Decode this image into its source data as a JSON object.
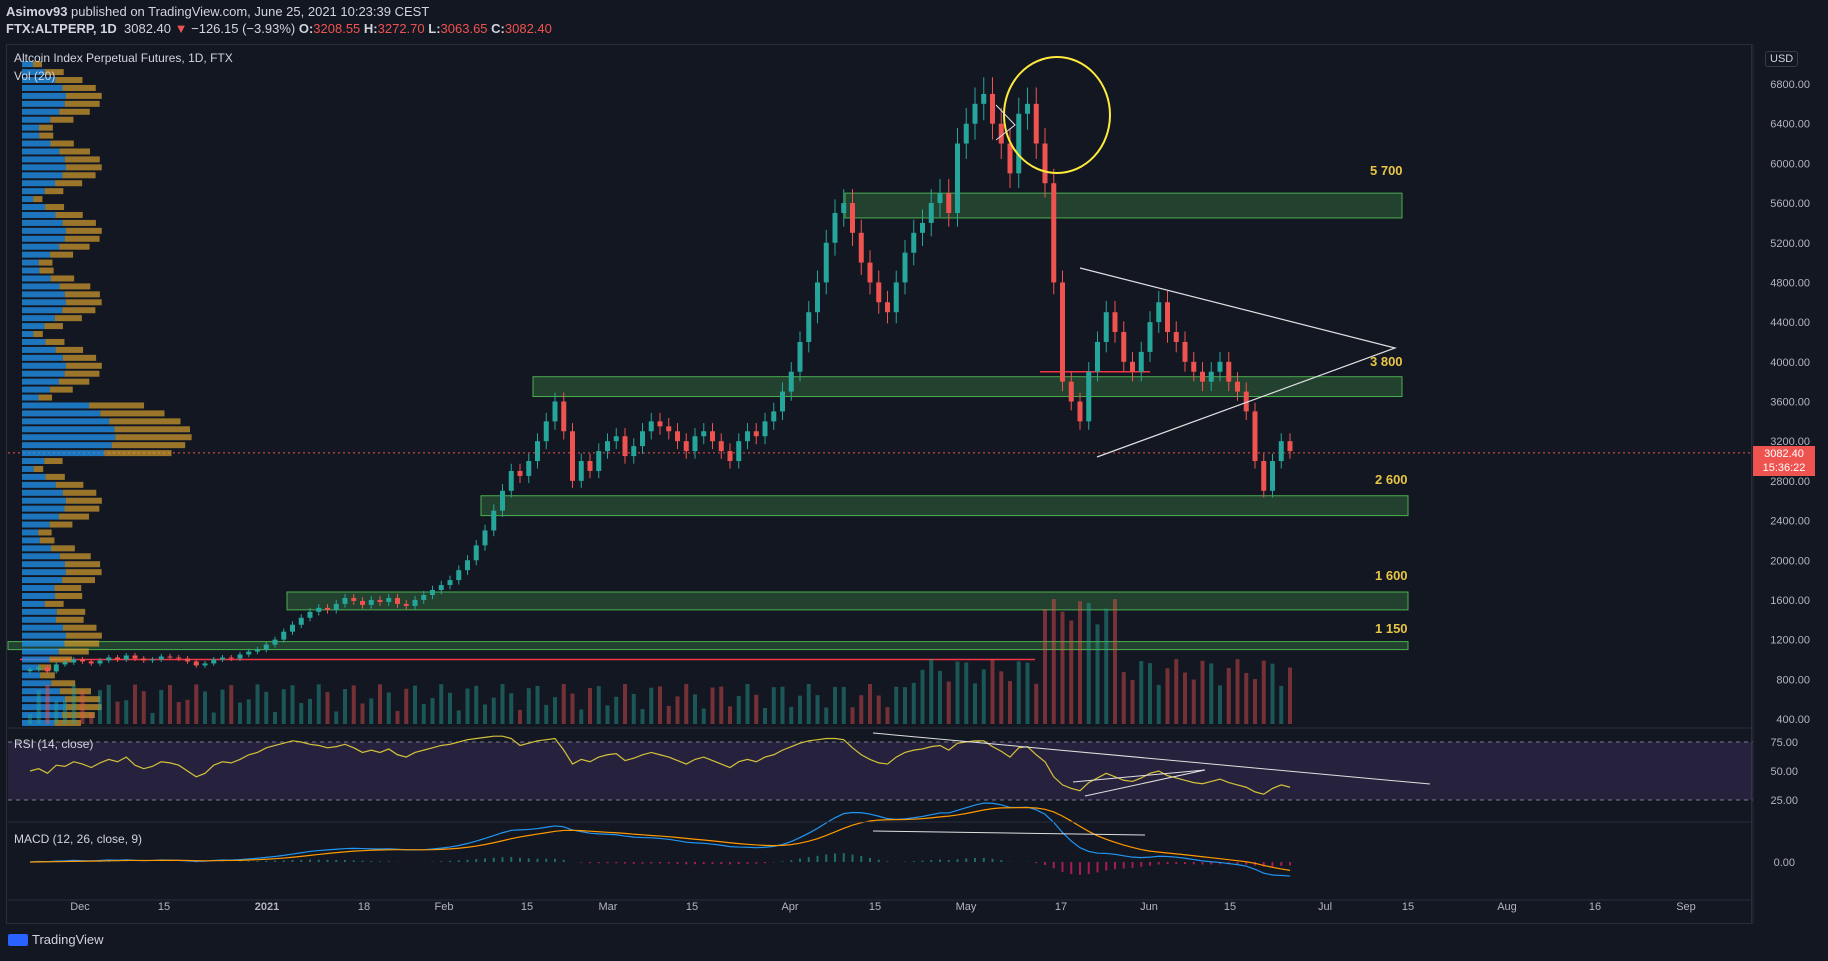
{
  "header": {
    "author": "Asimov93",
    "published": "published on TradingView.com, June 25, 2021 10:23:39 CEST",
    "symbol": "FTX:ALTPERP, 1D",
    "last": "3082.40",
    "change_arrow": "▼",
    "change": "−126.15 (−3.93%)",
    "o_label": "O:",
    "o": "3208.55",
    "h_label": "H:",
    "h": "3272.70",
    "l_label": "L:",
    "l": "3063.65",
    "c_label": "C:",
    "c": "3082.40"
  },
  "chart_title": "Altcoin Index Perpetual Futures, 1D, FTX",
  "vol_label": "Vol (20)",
  "rsi_label": "RSI (14, close)",
  "macd_label": "MACD (12, 26, close, 9)",
  "currency_button": "USD",
  "price_tag": {
    "price": "3082.40",
    "countdown": "15:36:22"
  },
  "levels": [
    "5 700",
    "3 800",
    "2 600",
    "1 600",
    "1 150"
  ],
  "footer": {
    "brand": "TradingView"
  },
  "colors": {
    "up": "#26a69a",
    "down": "#ef5350",
    "zone": "#2e7d32",
    "annotation": "#e8e84a",
    "rsi": "#d4c13a",
    "macd": "#2196f3",
    "signal": "#ff9800",
    "bg": "#131722"
  },
  "chart_data": {
    "type": "candlestick",
    "price_axis_ticks": [
      6800,
      6400,
      6000,
      5600,
      5200,
      4800,
      4400,
      4000,
      3600,
      3200,
      2800,
      2400,
      2000,
      1600,
      1200,
      800,
      400
    ],
    "price_axis_labels": [
      "6800.00",
      "6400.00",
      "6000.00",
      "5600.00",
      "5200.00",
      "4800.00",
      "4400.00",
      "4000.00",
      "3600.00",
      "3200.00",
      "2800.00",
      "2400.00",
      "2000.00",
      "1600.00",
      "1200.00",
      "800.00",
      "400.00"
    ],
    "rsi_axis_labels": [
      "75.00",
      "50.00",
      "25.00"
    ],
    "rsi_ticks": [
      75,
      50,
      25
    ],
    "macd_axis_labels": [
      "0.00"
    ],
    "time_axis_labels": [
      "Dec",
      "15",
      "2021",
      "18",
      "Feb",
      "15",
      "Mar",
      "15",
      "Apr",
      "15",
      "May",
      "17",
      "Jun",
      "15",
      "Jul",
      "15",
      "Aug",
      "16",
      "Sep"
    ],
    "ylim": [
      300,
      7300
    ],
    "support_resistance_zones": [
      {
        "label": "5 700",
        "from": 5450,
        "to": 5700
      },
      {
        "label": "3 800",
        "from": 3650,
        "to": 3850
      },
      {
        "label": "2 600",
        "from": 2450,
        "to": 2650
      },
      {
        "label": "1 600",
        "from": 1500,
        "to": 1680
      },
      {
        "label": "1 150",
        "from": 1100,
        "to": 1180
      }
    ],
    "close_series": [
      900,
      920,
      880,
      950,
      970,
      1000,
      980,
      960,
      990,
      1020,
      1000,
      1040,
      1010,
      990,
      1000,
      1030,
      1020,
      1010,
      980,
      940,
      960,
      1000,
      1020,
      1010,
      1050,
      1080,
      1100,
      1150,
      1200,
      1280,
      1350,
      1420,
      1480,
      1520,
      1500,
      1560,
      1620,
      1590,
      1550,
      1600,
      1580,
      1620,
      1560,
      1540,
      1600,
      1650,
      1700,
      1750,
      1800,
      1900,
      2000,
      2150,
      2300,
      2500,
      2700,
      2900,
      2850,
      3000,
      3200,
      3400,
      3600,
      3300,
      2800,
      3000,
      2900,
      3100,
      3200,
      3250,
      3050,
      3150,
      3300,
      3400,
      3350,
      3300,
      3200,
      3100,
      3250,
      3300,
      3200,
      3100,
      3000,
      3200,
      3300,
      3250,
      3400,
      3500,
      3700,
      3900,
      4200,
      4500,
      4800,
      5200,
      5500,
      5600,
      5300,
      5000,
      4800,
      4600,
      4500,
      4800,
      5100,
      5300,
      5400,
      5600,
      5700,
      5500,
      6200,
      6400,
      6600,
      6700,
      6400,
      6200,
      5900,
      6500,
      6600,
      6200,
      5800,
      4800,
      3800,
      3600,
      3400,
      3900,
      4200,
      4500,
      4300,
      4000,
      3900,
      4100,
      4400,
      4600,
      4300,
      4200,
      4000,
      3900,
      3800,
      3900,
      4000,
      3800,
      3700,
      3500,
      3000,
      2700,
      3000,
      3200,
      3100
    ],
    "rsi_series": [
      50,
      52,
      48,
      55,
      54,
      58,
      56,
      53,
      57,
      60,
      58,
      62,
      55,
      52,
      54,
      58,
      57,
      55,
      50,
      45,
      48,
      55,
      58,
      57,
      60,
      64,
      66,
      70,
      72,
      74,
      76,
      75,
      73,
      72,
      70,
      71,
      73,
      70,
      66,
      68,
      66,
      69,
      64,
      62,
      66,
      68,
      70,
      72,
      73,
      75,
      77,
      78,
      79,
      80,
      80,
      78,
      72,
      74,
      76,
      77,
      78,
      68,
      56,
      60,
      58,
      62,
      64,
      65,
      59,
      61,
      64,
      66,
      64,
      62,
      59,
      56,
      60,
      62,
      59,
      56,
      53,
      58,
      60,
      58,
      62,
      64,
      68,
      71,
      74,
      76,
      77,
      78,
      78,
      77,
      70,
      64,
      60,
      57,
      56,
      62,
      66,
      68,
      69,
      71,
      72,
      68,
      74,
      75,
      76,
      76,
      71,
      67,
      62,
      70,
      71,
      64,
      58,
      45,
      38,
      35,
      33,
      40,
      44,
      48,
      45,
      42,
      41,
      44,
      48,
      50,
      46,
      44,
      42,
      40,
      39,
      41,
      43,
      40,
      38,
      36,
      32,
      30,
      35,
      38,
      36
    ],
    "macd_series": [
      0,
      5,
      3,
      8,
      10,
      15,
      12,
      10,
      14,
      18,
      16,
      20,
      15,
      12,
      14,
      18,
      17,
      15,
      10,
      5,
      8,
      14,
      18,
      17,
      22,
      28,
      34,
      42,
      50,
      60,
      72,
      84,
      96,
      104,
      110,
      116,
      122,
      124,
      122,
      120,
      118,
      120,
      116,
      110,
      110,
      112,
      118,
      126,
      136,
      150,
      168,
      190,
      214,
      240,
      266,
      288,
      292,
      296,
      304,
      316,
      328,
      320,
      290,
      276,
      262,
      256,
      252,
      248,
      236,
      226,
      222,
      220,
      214,
      206,
      194,
      180,
      174,
      170,
      162,
      152,
      140,
      136,
      134,
      130,
      134,
      142,
      160,
      186,
      222,
      262,
      306,
      356,
      402,
      440,
      450,
      448,
      436,
      416,
      394,
      388,
      392,
      402,
      414,
      430,
      446,
      446,
      470,
      494,
      518,
      536,
      534,
      520,
      496,
      496,
      498,
      474,
      434,
      360,
      268,
      190,
      130,
      96,
      80,
      78,
      70,
      56,
      44,
      40,
      44,
      52,
      50,
      44,
      34,
      22,
      10,
      2,
      -4,
      -14,
      -24,
      -38,
      -66,
      -102,
      -118,
      -122,
      -128
    ],
    "signal_series": [
      0,
      1,
      2,
      3,
      4,
      6,
      7,
      8,
      9,
      11,
      12,
      14,
      14,
      14,
      14,
      15,
      15,
      15,
      14,
      12,
      11,
      12,
      13,
      14,
      15,
      18,
      21,
      25,
      30,
      36,
      43,
      51,
      60,
      69,
      77,
      85,
      92,
      99,
      103,
      107,
      109,
      111,
      112,
      112,
      111,
      111,
      112,
      115,
      119,
      125,
      134,
      145,
      159,
      175,
      193,
      212,
      228,
      241,
      254,
      266,
      279,
      287,
      288,
      285,
      280,
      275,
      270,
      266,
      260,
      253,
      247,
      241,
      236,
      230,
      223,
      215,
      207,
      200,
      192,
      184,
      175,
      167,
      161,
      155,
      151,
      149,
      151,
      158,
      171,
      189,
      212,
      241,
      273,
      306,
      335,
      357,
      373,
      381,
      384,
      385,
      386,
      389,
      394,
      401,
      410,
      417,
      428,
      441,
      457,
      473,
      485,
      492,
      493,
      494,
      495,
      491,
      479,
      455,
      417,
      372,
      324,
      278,
      238,
      206,
      179,
      154,
      132,
      113,
      99,
      90,
      82,
      74,
      66,
      57,
      48,
      39,
      30,
      21,
      12,
      2,
      -12,
      -31,
      -48,
      -63,
      -76
    ]
  }
}
